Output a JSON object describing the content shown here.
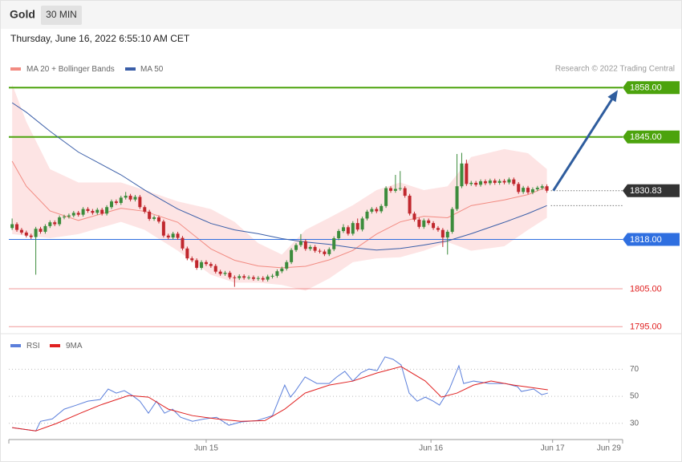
{
  "header": {
    "symbol": "Gold",
    "interval": "30 MIN",
    "datetime": "Thursday, June 16, 2022 6:55:10 AM CET",
    "credit": "Research © 2022 Trading Central"
  },
  "chart_data": [
    {
      "type": "candlestick",
      "xlim": [
        -0.7,
        129
      ],
      "ylim": [
        1794,
        1861
      ],
      "up_color": "#3c8c3c",
      "down_color": "#c0272d",
      "open": [
        1821,
        1822,
        1820.5,
        1819.8,
        1819,
        1818.6,
        1820.8,
        1820,
        1821.5,
        1822.5,
        1822,
        1823.8,
        1824,
        1824.3,
        1825,
        1824.5,
        1826,
        1825.5,
        1825,
        1825.8,
        1824.8,
        1826.5,
        1828,
        1827.6,
        1829,
        1829.5,
        1828.5,
        1829.2,
        1826.5,
        1825.3,
        1823.4,
        1823.8,
        1822.7,
        1819,
        1818.5,
        1819.5,
        1818.4,
        1815.6,
        1813,
        1812.5,
        1810.5,
        1812,
        1811.5,
        1811,
        1809.5,
        1808.9,
        1809.2,
        1808,
        1807.8,
        1808.3,
        1807.9,
        1808,
        1807.6,
        1807.8,
        1807.4,
        1808.2,
        1808.4,
        1809.6,
        1810.3,
        1812,
        1815.2,
        1816.5,
        1817.5,
        1815.5,
        1816,
        1815,
        1814.8,
        1814.1,
        1815.4,
        1818.3,
        1820.2,
        1821.2,
        1819.5,
        1822.3,
        1820.6,
        1823.5,
        1825.3,
        1826,
        1825.4,
        1826.8,
        1831.5,
        1830.8,
        1831.3,
        1831.5,
        1829.5,
        1824.8,
        1823.2,
        1821.3,
        1823,
        1822.3,
        1821,
        1820.5,
        1818.5,
        1820,
        1826,
        1832,
        1838,
        1832.6,
        1832.9,
        1832.4,
        1833.3,
        1832.8,
        1833.5,
        1832.9,
        1833.4,
        1833,
        1833.8,
        1832.6,
        1830.5,
        1831.6,
        1830.4,
        1831.2,
        1831.6,
        1832
      ],
      "high": [
        1823.5,
        1822.5,
        1821,
        1820.3,
        1819.5,
        1821.3,
        1821.3,
        1822,
        1823,
        1823,
        1824.3,
        1824.5,
        1824.8,
        1825.5,
        1825.5,
        1826.5,
        1826.5,
        1826,
        1826.3,
        1826.3,
        1827,
        1828.5,
        1828.5,
        1829.5,
        1830.5,
        1830,
        1829.7,
        1829.7,
        1827,
        1825.8,
        1824.3,
        1824.3,
        1823.2,
        1819.5,
        1820,
        1820,
        1818.9,
        1816.1,
        1813.5,
        1813,
        1812.5,
        1812.5,
        1812,
        1811.5,
        1810,
        1809.7,
        1809.7,
        1808.5,
        1808.8,
        1808.8,
        1808.5,
        1808.5,
        1808.3,
        1808.3,
        1808.7,
        1808.9,
        1810.1,
        1810.8,
        1812.5,
        1815.7,
        1817,
        1819.4,
        1818,
        1816.5,
        1816.5,
        1815.5,
        1815.3,
        1815.9,
        1818.8,
        1820.7,
        1822,
        1821.7,
        1822.8,
        1823.5,
        1824,
        1825.8,
        1826.5,
        1826.5,
        1827.3,
        1832,
        1832,
        1835,
        1836,
        1832,
        1830,
        1825.3,
        1823.7,
        1823.5,
        1823.5,
        1822.8,
        1821.5,
        1821,
        1820.5,
        1826.5,
        1840.5,
        1840.8,
        1839,
        1833.4,
        1833.4,
        1833.8,
        1833.8,
        1834,
        1834,
        1833.9,
        1833.9,
        1834.3,
        1834.3,
        1833.1,
        1832.1,
        1832.1,
        1831.7,
        1832.1,
        1832.5,
        1832.5
      ],
      "low": [
        1820.5,
        1820,
        1819.3,
        1818.5,
        1818.1,
        1808.7,
        1819.5,
        1819.5,
        1821,
        1821.5,
        1821.5,
        1823.3,
        1823.5,
        1823.8,
        1824,
        1824,
        1825,
        1824.5,
        1824.5,
        1824.3,
        1824.3,
        1826,
        1827.1,
        1827.1,
        1828.5,
        1828,
        1828,
        1826,
        1824.8,
        1822.9,
        1822.9,
        1822.2,
        1818.5,
        1818,
        1818,
        1817.9,
        1815.1,
        1812.5,
        1812,
        1810,
        1810,
        1811,
        1810.5,
        1809,
        1808.4,
        1808.4,
        1807.5,
        1805.5,
        1807.3,
        1807.4,
        1807.4,
        1807.1,
        1807.1,
        1806.9,
        1806.9,
        1807.7,
        1807.9,
        1809.1,
        1809.8,
        1811.5,
        1814.7,
        1816,
        1815,
        1815,
        1814.5,
        1814.3,
        1813.6,
        1813.6,
        1814.9,
        1817.8,
        1819.7,
        1819,
        1819,
        1820.1,
        1820.1,
        1823,
        1824.8,
        1824.9,
        1824.9,
        1826.3,
        1830.3,
        1830.3,
        1830.8,
        1829,
        1824.3,
        1822.7,
        1820.8,
        1820.8,
        1821.8,
        1820.5,
        1820,
        1816,
        1814,
        1819.5,
        1825.5,
        1831.5,
        1832.1,
        1832.1,
        1831.9,
        1831.9,
        1832.3,
        1832.3,
        1832.4,
        1832.4,
        1832.5,
        1832.5,
        1832.1,
        1830,
        1830,
        1829.9,
        1829.9,
        1830.7,
        1831.1,
        1830.3
      ],
      "close": [
        1822,
        1820.5,
        1819.8,
        1819,
        1818.6,
        1820.8,
        1820,
        1821.5,
        1822.5,
        1822,
        1823.8,
        1824,
        1824.3,
        1825,
        1824.5,
        1826,
        1825.5,
        1825,
        1825.8,
        1824.8,
        1826.5,
        1828,
        1827.6,
        1829,
        1829.5,
        1828.5,
        1829.2,
        1826.5,
        1825.3,
        1823.4,
        1823.8,
        1822.7,
        1819,
        1818.5,
        1819.5,
        1818.4,
        1815.6,
        1813,
        1812.5,
        1810.5,
        1812,
        1811.5,
        1811,
        1809.5,
        1808.9,
        1809.2,
        1808,
        1807.8,
        1808.3,
        1807.9,
        1808,
        1807.6,
        1807.8,
        1807.4,
        1808.2,
        1808.4,
        1809.6,
        1810.3,
        1812,
        1815.2,
        1816.5,
        1817.5,
        1815.5,
        1816,
        1815,
        1814.8,
        1814.1,
        1815.4,
        1818.3,
        1820.2,
        1821.2,
        1819.5,
        1822.3,
        1820.6,
        1823.5,
        1825.3,
        1826,
        1825.4,
        1826.8,
        1831.5,
        1830.8,
        1831.3,
        1831.5,
        1829.5,
        1824.8,
        1823.2,
        1821.3,
        1823,
        1822.3,
        1821,
        1820.5,
        1818.5,
        1820,
        1826,
        1832,
        1838,
        1832.6,
        1832.9,
        1832.4,
        1833.3,
        1832.8,
        1833.5,
        1832.9,
        1833.4,
        1833,
        1833.8,
        1832.6,
        1830.5,
        1831.6,
        1830.4,
        1831.2,
        1831.6,
        1832,
        1830.83
      ],
      "bands": {
        "name": "MA 20 + Bollinger Bands",
        "color": "#f28b82",
        "fill": "#fde4e4",
        "x": [
          0,
          3,
          8,
          14,
          23,
          28,
          35,
          42,
          47,
          52,
          57,
          62,
          67,
          72,
          77,
          82,
          87,
          92,
          97,
          104,
          109,
          113
        ],
        "upper": [
          1858.9,
          1849,
          1836.5,
          1833,
          1833,
          1831,
          1828,
          1826,
          1822.6,
          1817,
          1814,
          1820.5,
          1823.7,
          1827,
          1831,
          1833,
          1831,
          1832,
          1839.7,
          1841.8,
          1840.7,
          1836.5
        ],
        "middle": [
          1838.6,
          1832,
          1825.5,
          1823,
          1826.2,
          1825.4,
          1822.5,
          1815.5,
          1812.5,
          1811,
          1810.5,
          1810.9,
          1812.6,
          1815.1,
          1819.4,
          1822.6,
          1824.1,
          1823.7,
          1826.9,
          1828.4,
          1829.8,
          1831.8
        ],
        "lower": [
          1819.4,
          1819,
          1818.3,
          1819.4,
          1822.6,
          1820.5,
          1815,
          1808.7,
          1806.6,
          1806.6,
          1806,
          1804.5,
          1807.7,
          1812,
          1813,
          1813.3,
          1815,
          1817.3,
          1815,
          1816.2,
          1820.5,
          1823.7
        ]
      },
      "ma50": {
        "name": "MA 50",
        "color": "#3a5ea8",
        "x": [
          0,
          3,
          8,
          14,
          23,
          28,
          35,
          42,
          47,
          52,
          57,
          62,
          67,
          72,
          77,
          82,
          87,
          92,
          97,
          104,
          109,
          113
        ],
        "values": [
          1854,
          1851.5,
          1846.5,
          1841,
          1835,
          1831,
          1826,
          1822.2,
          1820.5,
          1819.5,
          1818.2,
          1817.3,
          1816.7,
          1815.8,
          1815.2,
          1815.6,
          1816.5,
          1817.6,
          1819.5,
          1822.5,
          1824.8,
          1826.9
        ]
      },
      "levels": [
        {
          "value": 1858,
          "label": "1858.00",
          "color": "#4ca30d",
          "line": "solid",
          "width": 2,
          "label_bg": true
        },
        {
          "value": 1845,
          "label": "1845.00",
          "color": "#4ca30d",
          "line": "solid",
          "width": 2,
          "label_bg": true
        },
        {
          "value": 1830.83,
          "label": "1830.83",
          "color": "#333333",
          "line": "dotted",
          "width": 1,
          "label_bg": true
        },
        {
          "value": 1818,
          "label": "1818.00",
          "color": "#2f6fe0",
          "line": "solid",
          "width": 1,
          "label_bg": true
        },
        {
          "value": 1805,
          "label": "1805.00",
          "color": "#e02020",
          "line": "solid",
          "width": 1,
          "label_bg": false
        },
        {
          "value": 1795,
          "label": "1795.00",
          "color": "#e02020",
          "line": "solid",
          "width": 1,
          "label_bg": false
        }
      ]
    },
    {
      "type": "line",
      "xlim": [
        -0.7,
        129
      ],
      "ylim": [
        18,
        94
      ],
      "yticks": [
        30,
        50,
        70
      ],
      "xticks": [
        {
          "value": 41,
          "label": "Jun 15"
        },
        {
          "value": 88.5,
          "label": "Jun 16"
        },
        {
          "value": 114.2,
          "label": "Jun 17"
        },
        {
          "value": 126.1,
          "label": "Jun 29"
        }
      ],
      "series": [
        {
          "name": "RSI",
          "color": "#5b7fdb",
          "x": [
            0,
            2.5,
            5,
            6,
            8.5,
            11,
            13.6,
            16,
            18.6,
            20.3,
            22,
            23.7,
            25.4,
            27,
            28.8,
            30.5,
            32.2,
            33.9,
            35.6,
            38.1,
            40.7,
            43.2,
            45.8,
            48.3,
            51.7,
            55,
            57.6,
            58.8,
            59.8,
            61.9,
            64.4,
            67,
            68.6,
            70.3,
            72,
            73.7,
            75.4,
            77.1,
            78.8,
            80.5,
            82.2,
            83.9,
            85.6,
            87.3,
            89,
            90.3,
            92.4,
            94.4,
            95.4,
            97.5,
            100.8,
            104.2,
            106.8,
            107.6,
            110.2,
            111.9,
            113.2
          ],
          "values": [
            26.8,
            25.6,
            24.4,
            31.5,
            33.3,
            40.5,
            43.5,
            46.4,
            47.6,
            55.4,
            52.4,
            54.2,
            50.6,
            46.4,
            37.5,
            46.4,
            37.5,
            40.5,
            34.5,
            31.5,
            33.3,
            34.5,
            28.6,
            31,
            32,
            35.7,
            58.3,
            49.4,
            53.6,
            64.3,
            59.5,
            59.5,
            64.3,
            68.5,
            61.3,
            67.3,
            70.2,
            69,
            79.2,
            77.4,
            73.2,
            52.4,
            46.4,
            49.4,
            46.4,
            43.5,
            55.4,
            72.6,
            59.5,
            61.3,
            59.5,
            59.5,
            57.1,
            53.6,
            55.4,
            51.2,
            52.4
          ]
        },
        {
          "name": "9MA",
          "color": "#e02020",
          "x": [
            0,
            5,
            9.3,
            14.4,
            18.6,
            24.6,
            28.8,
            33,
            38.1,
            43.2,
            48.3,
            53.4,
            57.6,
            61.9,
            67,
            72,
            77.1,
            82.2,
            87.3,
            90.7,
            94,
            97.5,
            101.2,
            106,
            113.2
          ],
          "values": [
            26.8,
            24.4,
            29.8,
            37.5,
            43.5,
            50.6,
            49.4,
            40.5,
            35.7,
            33.3,
            31.5,
            32,
            40.5,
            52.4,
            58.3,
            61.3,
            67.3,
            72,
            61.3,
            49.4,
            52.4,
            58.3,
            61.3,
            58.3,
            54.8
          ]
        }
      ]
    }
  ]
}
